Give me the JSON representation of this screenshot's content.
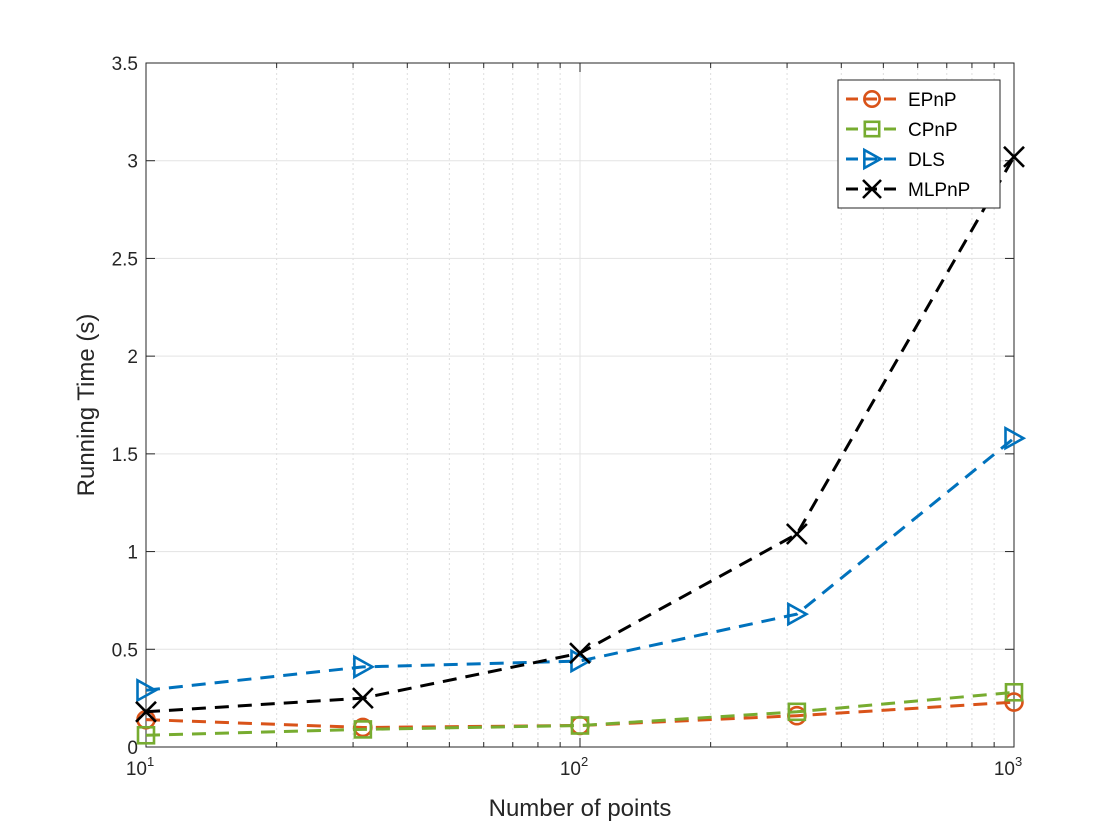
{
  "chart_data": {
    "type": "line",
    "xscale": "log",
    "xlabel": "Number of points",
    "ylabel": "Running Time (s)",
    "xlim": [
      10,
      1000
    ],
    "ylim": [
      0,
      3.5
    ],
    "x": [
      10,
      31.6,
      100,
      316,
      1000
    ],
    "xticks": [
      {
        "value": 10,
        "base": "10",
        "exp": "1"
      },
      {
        "value": 100,
        "base": "10",
        "exp": "2"
      },
      {
        "value": 1000,
        "base": "10",
        "exp": "3"
      }
    ],
    "yticks": [
      {
        "value": 0,
        "label": "0"
      },
      {
        "value": 0.5,
        "label": "0.5"
      },
      {
        "value": 1,
        "label": "1"
      },
      {
        "value": 1.5,
        "label": "1.5"
      },
      {
        "value": 2,
        "label": "2"
      },
      {
        "value": 2.5,
        "label": "2.5"
      },
      {
        "value": 3,
        "label": "3"
      },
      {
        "value": 3.5,
        "label": "3.5"
      }
    ],
    "grid": true,
    "legend_position": "top-right",
    "series": [
      {
        "name": "EPnP",
        "values": [
          0.14,
          0.1,
          0.11,
          0.16,
          0.23
        ],
        "color": "#d95319",
        "marker": "circle"
      },
      {
        "name": "CPnP",
        "values": [
          0.06,
          0.09,
          0.11,
          0.18,
          0.28
        ],
        "color": "#77ac30",
        "marker": "square"
      },
      {
        "name": "DLS",
        "values": [
          0.29,
          0.41,
          0.44,
          0.68,
          1.58
        ],
        "color": "#0072bd",
        "marker": "triangle-right"
      },
      {
        "name": "MLPnP",
        "values": [
          0.18,
          0.25,
          0.48,
          1.09,
          3.02
        ],
        "color": "#000000",
        "marker": "x"
      }
    ]
  }
}
